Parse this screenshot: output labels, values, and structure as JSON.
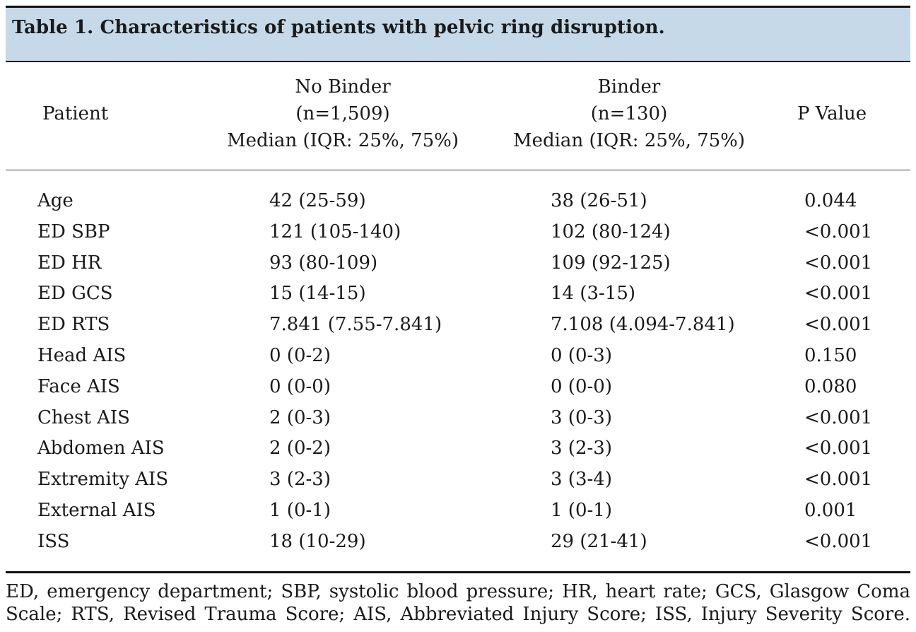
{
  "title": "Table 1.  Characteristics of patients with pelvic ring disruption.",
  "headers": {
    "patient": "Patient",
    "no_binder": [
      "No Binder",
      "(n=1,509)",
      "Median (IQR: 25%, 75%)"
    ],
    "binder": [
      "Binder",
      "(n=130)",
      "Median (IQR: 25%, 75%)"
    ],
    "p_value": "P Value"
  },
  "rows": [
    {
      "label": "Age",
      "no_binder": "42 (25-59)",
      "binder": "38 (26-51)",
      "p": "0.044"
    },
    {
      "label": "ED SBP",
      "no_binder": "121 (105-140)",
      "binder": "102 (80-124)",
      "p": "<0.001"
    },
    {
      "label": "ED HR",
      "no_binder": "93 (80-109)",
      "binder": "109 (92-125)",
      "p": "<0.001"
    },
    {
      "label": "ED GCS",
      "no_binder": "15 (14-15)",
      "binder": "14 (3-15)",
      "p": "<0.001"
    },
    {
      "label": "ED RTS",
      "no_binder": "7.841 (7.55-7.841)",
      "binder": "7.108 (4.094-7.841)",
      "p": "<0.001"
    },
    {
      "label": "Head AIS",
      "no_binder": "0 (0-2)",
      "binder": "0 (0-3)",
      "p": "0.150"
    },
    {
      "label": "Face AIS",
      "no_binder": "0 (0-0)",
      "binder": "0 (0-0)",
      "p": "0.080"
    },
    {
      "label": "Chest AIS",
      "no_binder": "2 (0-3)",
      "binder": "3 (0-3)",
      "p": "<0.001"
    },
    {
      "label": "Abdomen AIS",
      "no_binder": "2 (0-2)",
      "binder": "3 (2-3)",
      "p": "<0.001"
    },
    {
      "label": "Extremity AIS",
      "no_binder": "3 (2-3)",
      "binder": "3 (3-4)",
      "p": "<0.001"
    },
    {
      "label": "External AIS",
      "no_binder": "1 (0-1)",
      "binder": "1 (0-1)",
      "p": "0.001"
    },
    {
      "label": "ISS",
      "no_binder": "18 (10-29)",
      "binder": "29 (21-41)",
      "p": "<0.001"
    }
  ],
  "footnote": [
    "ED, emergency department;  SBP, systolic blood pressure; HR, heart rate; GCS, Glasgow Coma",
    "Scale; RTS, Revised Trauma Score; AIS, Abbreviated Injury Score; ISS, Injury Severity Score."
  ]
}
